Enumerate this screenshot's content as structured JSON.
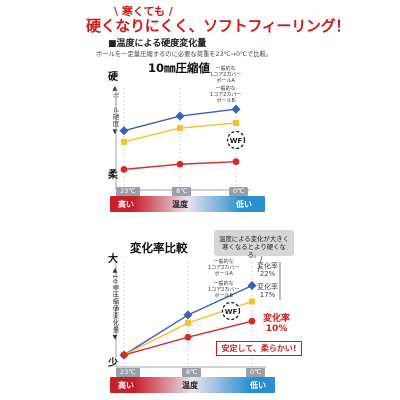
{
  "header": {
    "tagline": "寒くても",
    "headline": "硬くなりにくく、ソフトフィーリング！"
  },
  "section": {
    "title": "■温度による硬度変化量",
    "note": "ボールを一定量圧縮するのに必要な荷重を23℃→0℃で比較。"
  },
  "chart1": {
    "title": "10㎜圧縮値",
    "top_label": "硬",
    "bottom_label": "柔",
    "axis_text": "▲ボール硬度▼",
    "series_labels": [
      "一般的な\n1コア2カバー\nボールA",
      "一般的な\n1コア2カバー\nボールB"
    ],
    "logo_text": "WF"
  },
  "chart2": {
    "title": "変化率比較",
    "top_label": "大",
    "bottom_label": "少",
    "axis_text": "▲10㎜圧縮値変化量▼",
    "series_labels": [
      "一般的な\n1コア2カバー\nボールA",
      "一般的な\n1コア2カバー\nボールB"
    ],
    "rate_a": "変化率\n22%",
    "rate_b": "変化率\n17%",
    "rate_product": "変化率\n10%",
    "callout": "温度による変化が大きく\n寒くなるとより硬くなる。",
    "product_message": "安定して、柔らかい!",
    "logo_text": "WF"
  },
  "temperature_axis": {
    "ticks": [
      "23℃",
      "8℃",
      "0℃"
    ],
    "high_label": "高い",
    "mid_label": "温度",
    "low_label": "低い"
  },
  "colors": {
    "series_a": "#3a5fb8",
    "series_b": "#f0c330",
    "product": "#d52a2a",
    "warm": "#c8202a",
    "cool": "#2a8fd0",
    "red": "#d01a1a"
  },
  "chart_data": [
    {
      "type": "line",
      "title": "10㎜圧縮値",
      "x": [
        "23℃",
        "8℃",
        "0℃"
      ],
      "xlabel": "温度",
      "ylabel": "ボール硬度",
      "y_units": "relative",
      "ylim": [
        0,
        100
      ],
      "grid": false,
      "series": [
        {
          "name": "一般的な1コア2カバーボールA",
          "values": [
            55,
            72,
            80
          ],
          "color": "#3a5fb8"
        },
        {
          "name": "一般的な1コア2カバーボールB",
          "values": [
            42,
            58,
            64
          ],
          "color": "#f0c330"
        },
        {
          "name": "WF",
          "values": [
            10,
            16,
            19
          ],
          "color": "#d52a2a"
        }
      ]
    },
    {
      "type": "line",
      "title": "変化率比較",
      "x": [
        "23℃",
        "8℃",
        "0℃"
      ],
      "xlabel": "温度",
      "ylabel": "10㎜圧縮値変化量",
      "y_units": "relative",
      "ylim": [
        0,
        100
      ],
      "grid": false,
      "series": [
        {
          "name": "一般的な1コア2カバーボールA",
          "values": [
            0,
            45,
            78
          ],
          "color": "#3a5fb8",
          "annotation": "変化率22%"
        },
        {
          "name": "一般的な1コア2カバーボールB",
          "values": [
            0,
            36,
            60
          ],
          "color": "#f0c330",
          "annotation": "変化率17%"
        },
        {
          "name": "WF",
          "values": [
            0,
            20,
            38
          ],
          "color": "#d52a2a",
          "annotation": "変化率10%"
        }
      ]
    }
  ]
}
